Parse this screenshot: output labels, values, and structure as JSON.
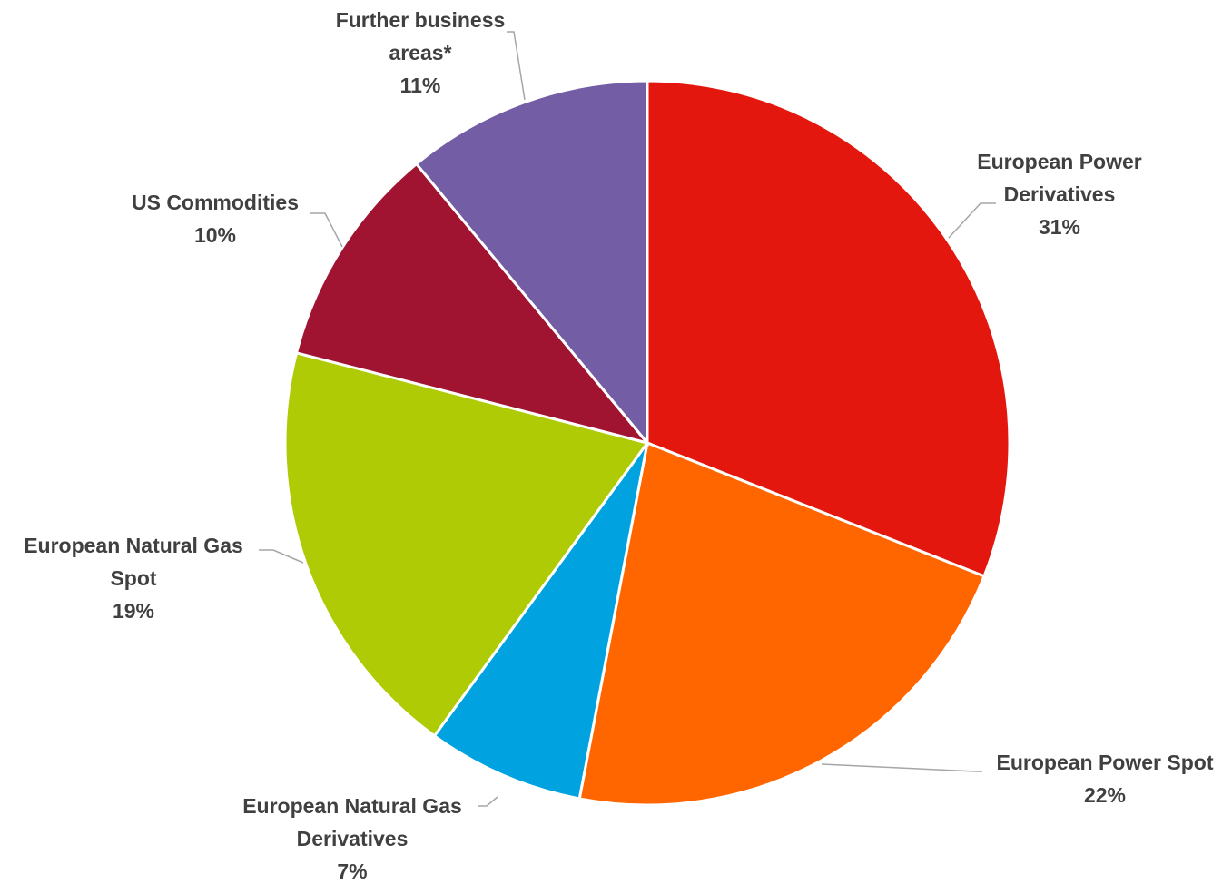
{
  "chart_data": {
    "type": "pie",
    "start_angle_deg": 0,
    "direction": "clockwise",
    "slices": [
      {
        "name": "European Power Derivatives",
        "label_lines": [
          "European Power",
          "Derivatives"
        ],
        "percent_label": "31%",
        "value": 31,
        "color": "#e3170d"
      },
      {
        "name": "European Power Spot",
        "label_lines": [
          "European Power Spot"
        ],
        "percent_label": "22%",
        "value": 22,
        "color": "#ff6600"
      },
      {
        "name": "European Natural Gas Derivatives",
        "label_lines": [
          "European Natural Gas",
          "Derivatives"
        ],
        "percent_label": "7%",
        "value": 7,
        "color": "#00a3e0"
      },
      {
        "name": "European Natural Gas Spot",
        "label_lines": [
          "European Natural Gas",
          "Spot"
        ],
        "percent_label": "19%",
        "value": 19,
        "color": "#afcb06"
      },
      {
        "name": "US Commodities",
        "label_lines": [
          "US Commodities"
        ],
        "percent_label": "10%",
        "value": 10,
        "color": "#a01432"
      },
      {
        "name": "Further business areas*",
        "label_lines": [
          "Further business",
          "areas*"
        ],
        "percent_label": "11%",
        "value": 11,
        "color": "#735da5"
      }
    ]
  }
}
